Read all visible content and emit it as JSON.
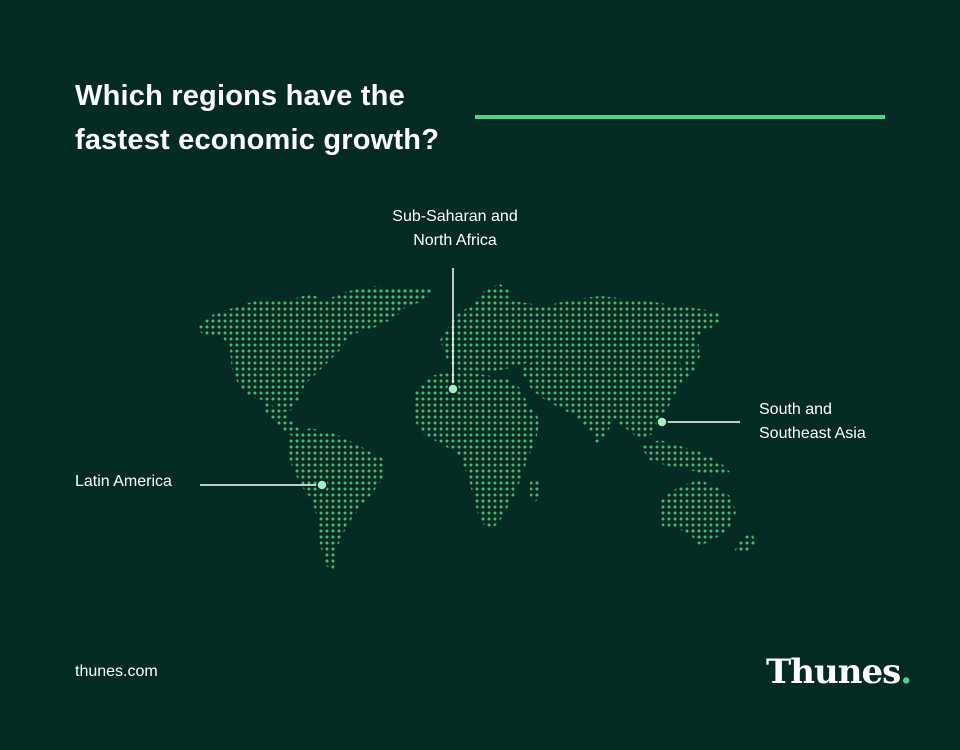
{
  "title": {
    "line1": "Which regions have the",
    "line2": "fastest economic growth?"
  },
  "callouts": {
    "africa": {
      "line1": "Sub-Saharan and",
      "line2": "North Africa"
    },
    "latam": {
      "line1": "Latin America"
    },
    "asia": {
      "line1": "South and",
      "line2": "Southeast Asia"
    }
  },
  "footer": {
    "url": "thunes.com",
    "brand": "Thunes",
    "brand_dot": "."
  },
  "colors": {
    "background": "#032b24",
    "accent": "#4fd38a",
    "map_dots": "#3fbf6e"
  }
}
